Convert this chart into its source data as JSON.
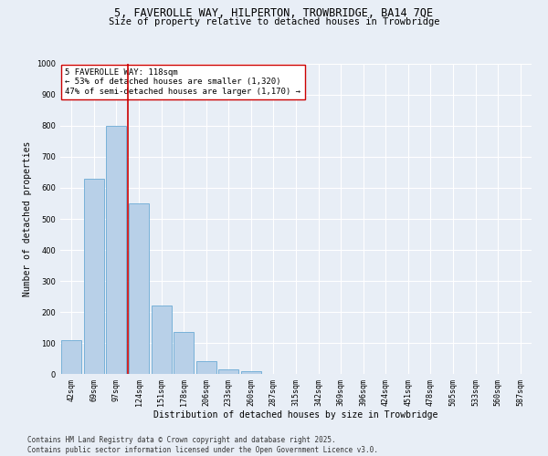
{
  "title_line1": "5, FAVEROLLE WAY, HILPERTON, TROWBRIDGE, BA14 7QE",
  "title_line2": "Size of property relative to detached houses in Trowbridge",
  "xlabel": "Distribution of detached houses by size in Trowbridge",
  "ylabel": "Number of detached properties",
  "categories": [
    "42sqm",
    "69sqm",
    "97sqm",
    "124sqm",
    "151sqm",
    "178sqm",
    "206sqm",
    "233sqm",
    "260sqm",
    "287sqm",
    "315sqm",
    "342sqm",
    "369sqm",
    "396sqm",
    "424sqm",
    "451sqm",
    "478sqm",
    "505sqm",
    "533sqm",
    "560sqm",
    "587sqm"
  ],
  "values": [
    110,
    630,
    800,
    550,
    222,
    135,
    42,
    15,
    10,
    0,
    0,
    0,
    0,
    0,
    0,
    0,
    0,
    0,
    0,
    0,
    0
  ],
  "bar_color": "#b8d0e8",
  "bar_edge_color": "#6aaad4",
  "vline_color": "#cc0000",
  "annotation_text": "5 FAVEROLLE WAY: 118sqm\n← 53% of detached houses are smaller (1,320)\n47% of semi-detached houses are larger (1,170) →",
  "annotation_box_color": "#ffffff",
  "annotation_box_edge": "#cc0000",
  "ylim": [
    0,
    1000
  ],
  "yticks": [
    0,
    100,
    200,
    300,
    400,
    500,
    600,
    700,
    800,
    900,
    1000
  ],
  "footer_line1": "Contains HM Land Registry data © Crown copyright and database right 2025.",
  "footer_line2": "Contains public sector information licensed under the Open Government Licence v3.0.",
  "background_color": "#e8eef6",
  "plot_bg_color": "#e8eef6",
  "grid_color": "#ffffff",
  "title1_fontsize": 8.5,
  "title2_fontsize": 7.5,
  "axis_label_fontsize": 7,
  "tick_fontsize": 6,
  "annotation_fontsize": 6.5,
  "footer_fontsize": 5.5
}
